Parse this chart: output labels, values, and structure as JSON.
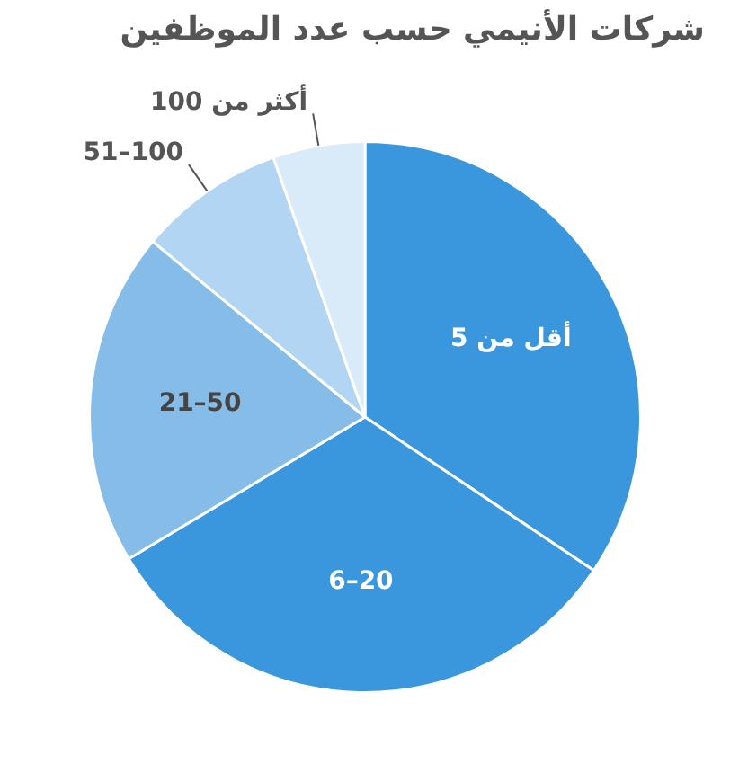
{
  "chart_data": {
    "type": "pie",
    "title": "شركات الأنيمي حسب عدد الموظفين",
    "categories": [
      "أقل من 5",
      "6–20",
      "21–50",
      "51–100",
      "أكثر من 100"
    ],
    "values": [
      34.4,
      32,
      19.6,
      8.6,
      5.4
    ],
    "colors": [
      "#3a97dd",
      "#3a97dd",
      "#85bce8",
      "#b1d5f2",
      "#d9eaf8"
    ]
  }
}
